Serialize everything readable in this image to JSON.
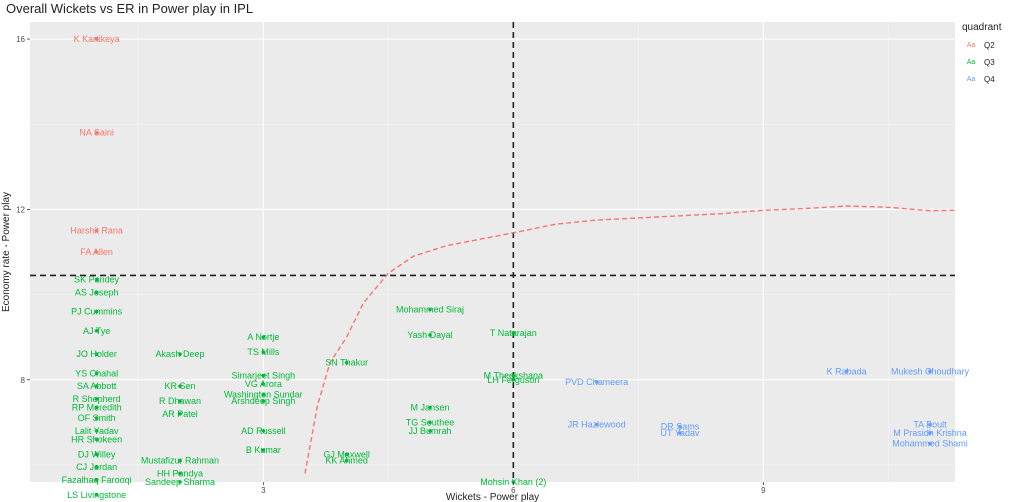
{
  "chart_data": {
    "type": "scatter",
    "title": "Overall Wickets vs ER in Power play in IPL",
    "xlabel": "Wickets - Power play",
    "ylabel": "Economy rate - Power play",
    "xlim": [
      0.2,
      11.3
    ],
    "ylim": [
      5.6,
      16.4
    ],
    "x_ticks": [
      3,
      6,
      9
    ],
    "y_ticks": [
      8,
      12,
      16
    ],
    "x_tick_labels": [
      "3",
      "6",
      "9"
    ],
    "y_tick_labels": [
      "8",
      "12",
      "16"
    ],
    "hline": 10.45,
    "vline": 6,
    "grid": true,
    "legend": {
      "title": "quadrant",
      "position": "right",
      "items": [
        {
          "key": "Aa",
          "label": "Q2",
          "color": "#F8766D"
        },
        {
          "key": "Aa",
          "label": "Q3",
          "color": "#00BA38"
        },
        {
          "key": "Aa",
          "label": "Q4",
          "color": "#619CFF"
        }
      ]
    },
    "trend": {
      "color": "#F8766D",
      "x": [
        3.5,
        3.65,
        3.8,
        4.0,
        4.2,
        4.5,
        4.8,
        5.2,
        5.6,
        6.0,
        6.5,
        7.0,
        7.5,
        8.0,
        8.5,
        9.0,
        9.5,
        10.0,
        10.5,
        11.0,
        11.3
      ],
      "y": [
        5.8,
        7.4,
        8.4,
        9.0,
        9.8,
        10.5,
        10.9,
        11.15,
        11.3,
        11.45,
        11.65,
        11.75,
        11.8,
        11.85,
        11.9,
        11.98,
        12.02,
        12.08,
        12.05,
        11.97,
        11.98
      ]
    },
    "series": [
      {
        "name": "Q2",
        "color": "#F8766D",
        "points": [
          {
            "label": "K Kartikeya",
            "x": 1,
            "y": 16.0
          },
          {
            "label": "NA Saini",
            "x": 1,
            "y": 13.8
          },
          {
            "label": "Harshit Rana",
            "x": 1,
            "y": 11.5
          },
          {
            "label": "FA Allen",
            "x": 1,
            "y": 11.0
          }
        ]
      },
      {
        "name": "Q3",
        "color": "#00BA38",
        "points": [
          {
            "label": "SK Pandey",
            "x": 1,
            "y": 10.35
          },
          {
            "label": "AS Joseph",
            "x": 1,
            "y": 10.05
          },
          {
            "label": "PJ Cummins",
            "x": 1,
            "y": 9.6
          },
          {
            "label": "AJ Tye",
            "x": 1,
            "y": 9.15
          },
          {
            "label": "JO Holder",
            "x": 1,
            "y": 8.6
          },
          {
            "label": "YS Chahal",
            "x": 1,
            "y": 8.15
          },
          {
            "label": "SA Abbott",
            "x": 1,
            "y": 7.85
          },
          {
            "label": "R Shepherd",
            "x": 1,
            "y": 7.55
          },
          {
            "label": "RP Meredith",
            "x": 1,
            "y": 7.35
          },
          {
            "label": "OF Smith",
            "x": 1,
            "y": 7.1
          },
          {
            "label": "Lalit Yadav",
            "x": 1,
            "y": 6.8
          },
          {
            "label": "HR Shokeen",
            "x": 1,
            "y": 6.6
          },
          {
            "label": "DJ Willey",
            "x": 1,
            "y": 6.25
          },
          {
            "label": "CJ Jordan",
            "x": 1,
            "y": 5.95
          },
          {
            "label": "Fazalhaq Farooqi",
            "x": 1,
            "y": 5.65
          },
          {
            "label": "LS Livingstone",
            "x": 1,
            "y": 5.3
          },
          {
            "label": "Akash Deep",
            "x": 2,
            "y": 8.6
          },
          {
            "label": "KR Sen",
            "x": 2,
            "y": 7.85
          },
          {
            "label": "R Dhawan",
            "x": 2,
            "y": 7.5
          },
          {
            "label": "AR Patel",
            "x": 2,
            "y": 7.2
          },
          {
            "label": "Mustafizur Rahman",
            "x": 2,
            "y": 6.1
          },
          {
            "label": "HH Pandya",
            "x": 2,
            "y": 5.8
          },
          {
            "label": "Sandeep Sharma",
            "x": 2,
            "y": 5.6
          },
          {
            "label": "A Nortje",
            "x": 3,
            "y": 9.0
          },
          {
            "label": "TS Mills",
            "x": 3,
            "y": 8.65
          },
          {
            "label": "Simarjeet Singh",
            "x": 3,
            "y": 8.1
          },
          {
            "label": "VG Arora",
            "x": 3,
            "y": 7.9
          },
          {
            "label": "Washington Sundar",
            "x": 3,
            "y": 7.65
          },
          {
            "label": "Arshdeep Singh",
            "x": 3,
            "y": 7.5
          },
          {
            "label": "AD Russell",
            "x": 3,
            "y": 6.8
          },
          {
            "label": "B Kumar",
            "x": 3,
            "y": 6.35
          },
          {
            "label": "SN Thakur",
            "x": 4,
            "y": 8.4
          },
          {
            "label": "GJ Maxwell",
            "x": 4,
            "y": 6.25
          },
          {
            "label": "KK Ahmed",
            "x": 4,
            "y": 6.1
          },
          {
            "label": "Mohammed Siraj",
            "x": 5,
            "y": 9.65
          },
          {
            "label": "Yash Dayal",
            "x": 5,
            "y": 9.05
          },
          {
            "label": "M Jansen",
            "x": 5,
            "y": 7.35
          },
          {
            "label": "TG Southee",
            "x": 5,
            "y": 7.0
          },
          {
            "label": "JJ Bumrah",
            "x": 5,
            "y": 6.8
          },
          {
            "label": "T Natarajan",
            "x": 6,
            "y": 9.1
          },
          {
            "label": "M Theekshana",
            "x": 6,
            "y": 8.1
          },
          {
            "label": "LH Ferguson",
            "x": 6,
            "y": 8.0
          },
          {
            "label": "Mohsin Khan (2)",
            "x": 6,
            "y": 5.6
          }
        ]
      },
      {
        "name": "Q4",
        "color": "#619CFF",
        "points": [
          {
            "label": "PVD Chameera",
            "x": 7,
            "y": 7.95
          },
          {
            "label": "JR Hazlewood",
            "x": 7,
            "y": 6.95
          },
          {
            "label": "DR Sams",
            "x": 8,
            "y": 6.9
          },
          {
            "label": "UT Yadav",
            "x": 8,
            "y": 6.75
          },
          {
            "label": "K Rabada",
            "x": 10,
            "y": 8.2
          },
          {
            "label": "Mukesh Choudhary",
            "x": 11,
            "y": 8.2
          },
          {
            "label": "TA Boult",
            "x": 11,
            "y": 6.95
          },
          {
            "label": "M Prasidh Krishna",
            "x": 11,
            "y": 6.75
          },
          {
            "label": "Mohammed Shami",
            "x": 11,
            "y": 6.5
          }
        ]
      }
    ]
  }
}
